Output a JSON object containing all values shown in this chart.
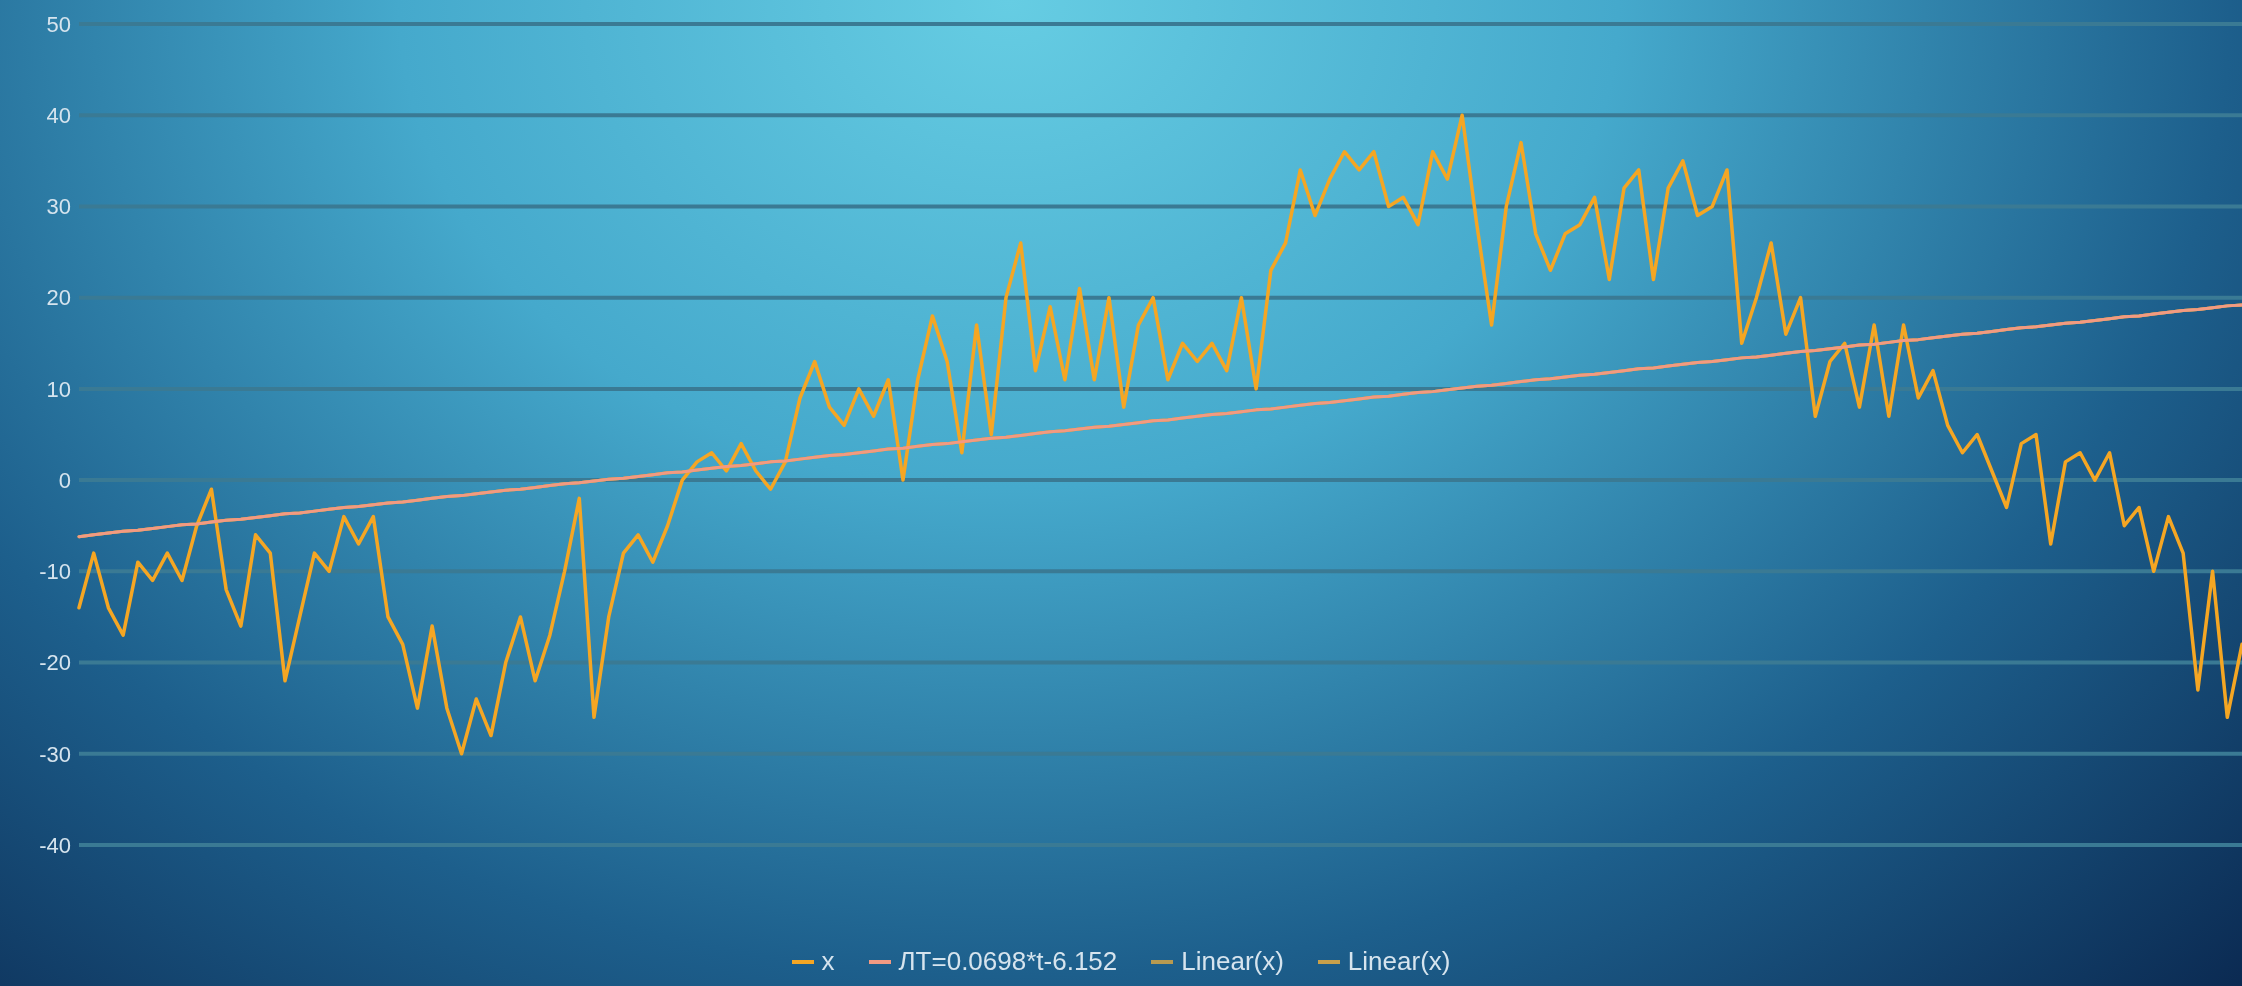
{
  "chart_data": {
    "type": "line",
    "categories": [
      null,
      null,
      null,
      null,
      null,
      null,
      null,
      null,
      null,
      null,
      null,
      null,
      null,
      null,
      null,
      null,
      null,
      null,
      null,
      null,
      null,
      null,
      null,
      null,
      null,
      null,
      null,
      null,
      null,
      null,
      null,
      null,
      null,
      null,
      null,
      null,
      null,
      null,
      null,
      null,
      null,
      null,
      null,
      null,
      null,
      null,
      null,
      null,
      null,
      null,
      null,
      null,
      null,
      null,
      null,
      null,
      null,
      null,
      null,
      null,
      null,
      null,
      null,
      null,
      null,
      null,
      null,
      null,
      null,
      null,
      null,
      null,
      null,
      null,
      null,
      null,
      null,
      null,
      null,
      null,
      null,
      null,
      null,
      null,
      null,
      null,
      null,
      null,
      null,
      null,
      null,
      null,
      null,
      null,
      null,
      null,
      null,
      null,
      null,
      null,
      null,
      null,
      null,
      null,
      null,
      null,
      null,
      null,
      null,
      null,
      null,
      null,
      null,
      null,
      null,
      null,
      null,
      null,
      null,
      null,
      null,
      null,
      null,
      null,
      null,
      null,
      null,
      null,
      null,
      null,
      null,
      null,
      null,
      null,
      null,
      null,
      null,
      null,
      null,
      null,
      null,
      null,
      null,
      null,
      null,
      null,
      null,
      null
    ],
    "series": [
      {
        "name": "x",
        "color": "#f5a623",
        "values": [
          -14,
          -8,
          -14,
          -17,
          -9,
          -11,
          -8,
          -11,
          -5,
          -1,
          -12,
          -16,
          -6,
          -8,
          -22,
          -15,
          -8,
          -10,
          -4,
          -7,
          -4,
          -15,
          -18,
          -25,
          -16,
          -25,
          -30,
          -24,
          -28,
          -20,
          -15,
          -22,
          -17,
          -10,
          -2,
          -26,
          -15,
          -8,
          -6,
          -9,
          -5,
          0,
          2,
          3,
          1,
          4,
          1,
          -1,
          2,
          9,
          13,
          8,
          6,
          10,
          7,
          11,
          0,
          11,
          18,
          13,
          3,
          17,
          5,
          20,
          26,
          12,
          19,
          11,
          21,
          11,
          20,
          8,
          17,
          20,
          11,
          15,
          13,
          15,
          12,
          20,
          10,
          23,
          26,
          34,
          29,
          33,
          36,
          34,
          36,
          30,
          31,
          28,
          36,
          33,
          40,
          28,
          17,
          30,
          37,
          27,
          23,
          27,
          28,
          31,
          22,
          32,
          34,
          22,
          32,
          35,
          29,
          30,
          34,
          15,
          20,
          26,
          16,
          20,
          7,
          13,
          15,
          8,
          17,
          7,
          17,
          9,
          12,
          6,
          3,
          5,
          1,
          -3,
          4,
          5,
          -7,
          2,
          3,
          0,
          3,
          -5,
          -3,
          -10,
          -4,
          -8,
          -23,
          -10,
          -26,
          -18
        ]
      },
      {
        "name": "ЛТ=0.0698*t-6.152",
        "color": "#f29a82",
        "values": [
          -6.2,
          -6.0,
          -5.8,
          -5.6,
          -5.5,
          -5.3,
          -5.1,
          -4.9,
          -4.8,
          -4.6,
          -4.4,
          -4.3,
          -4.1,
          -3.9,
          -3.7,
          -3.6,
          -3.4,
          -3.2,
          -3.0,
          -2.9,
          -2.7,
          -2.5,
          -2.4,
          -2.2,
          -2.0,
          -1.8,
          -1.7,
          -1.5,
          -1.3,
          -1.1,
          -1.0,
          -0.8,
          -0.6,
          -0.4,
          -0.3,
          -0.1,
          0.1,
          0.2,
          0.4,
          0.6,
          0.8,
          0.9,
          1.1,
          1.3,
          1.5,
          1.6,
          1.8,
          2.0,
          2.1,
          2.3,
          2.5,
          2.7,
          2.8,
          3.0,
          3.2,
          3.4,
          3.5,
          3.7,
          3.9,
          4.0,
          4.2,
          4.4,
          4.6,
          4.7,
          4.9,
          5.1,
          5.3,
          5.4,
          5.6,
          5.8,
          5.9,
          6.1,
          6.3,
          6.5,
          6.6,
          6.8,
          7.0,
          7.2,
          7.3,
          7.5,
          7.7,
          7.8,
          8.0,
          8.2,
          8.4,
          8.5,
          8.7,
          8.9,
          9.1,
          9.2,
          9.4,
          9.6,
          9.7,
          9.9,
          10.1,
          10.3,
          10.4,
          10.6,
          10.8,
          11.0,
          11.1,
          11.3,
          11.5,
          11.6,
          11.8,
          12.0,
          12.2,
          12.3,
          12.5,
          12.7,
          12.9,
          13.0,
          13.2,
          13.4,
          13.5,
          13.7,
          13.9,
          14.1,
          14.2,
          14.4,
          14.6,
          14.8,
          14.9,
          15.1,
          15.3,
          15.4,
          15.6,
          15.8,
          16.0,
          16.1,
          16.3,
          16.5,
          16.7,
          16.8,
          17.0,
          17.2,
          17.3,
          17.5,
          17.7,
          17.9,
          18.0,
          18.2,
          18.4,
          18.6,
          18.7,
          18.9,
          19.1,
          19.2
        ]
      },
      {
        "name": "Linear(x)",
        "color": "#b89a50",
        "values": [
          -6.2,
          -6.0,
          -5.8,
          -5.6,
          -5.5,
          -5.3,
          -5.1,
          -4.9,
          -4.8,
          -4.6,
          -4.4,
          -4.3,
          -4.1,
          -3.9,
          -3.7,
          -3.6,
          -3.4,
          -3.2,
          -3.0,
          -2.9,
          -2.7,
          -2.5,
          -2.4,
          -2.2,
          -2.0,
          -1.8,
          -1.7,
          -1.5,
          -1.3,
          -1.1,
          -1.0,
          -0.8,
          -0.6,
          -0.4,
          -0.3,
          -0.1,
          0.1,
          0.2,
          0.4,
          0.6,
          0.8,
          0.9,
          1.1,
          1.3,
          1.5,
          1.6,
          1.8,
          2.0,
          2.1,
          2.3,
          2.5,
          2.7,
          2.8,
          3.0,
          3.2,
          3.4,
          3.5,
          3.7,
          3.9,
          4.0,
          4.2,
          4.4,
          4.6,
          4.7,
          4.9,
          5.1,
          5.3,
          5.4,
          5.6,
          5.8,
          5.9,
          6.1,
          6.3,
          6.5,
          6.6,
          6.8,
          7.0,
          7.2,
          7.3,
          7.5,
          7.7,
          7.8,
          8.0,
          8.2,
          8.4,
          8.5,
          8.7,
          8.9,
          9.1,
          9.2,
          9.4,
          9.6,
          9.7,
          9.9,
          10.1,
          10.3,
          10.4,
          10.6,
          10.8,
          11.0,
          11.1,
          11.3,
          11.5,
          11.6,
          11.8,
          12.0,
          12.2,
          12.3,
          12.5,
          12.7,
          12.9,
          13.0,
          13.2,
          13.4,
          13.5,
          13.7,
          13.9,
          14.1,
          14.2,
          14.4,
          14.6,
          14.8,
          14.9,
          15.1,
          15.3,
          15.4,
          15.6,
          15.8,
          16.0,
          16.1,
          16.3,
          16.5,
          16.7,
          16.8,
          17.0,
          17.2,
          17.3,
          17.5,
          17.7,
          17.9,
          18.0,
          18.2,
          18.4,
          18.6,
          18.7,
          18.9,
          19.1,
          19.2
        ]
      },
      {
        "name": "Linear(x)",
        "color": "#c9a04a",
        "values": [
          -6.2,
          -6.0,
          -5.8,
          -5.6,
          -5.5,
          -5.3,
          -5.1,
          -4.9,
          -4.8,
          -4.6,
          -4.4,
          -4.3,
          -4.1,
          -3.9,
          -3.7,
          -3.6,
          -3.4,
          -3.2,
          -3.0,
          -2.9,
          -2.7,
          -2.5,
          -2.4,
          -2.2,
          -2.0,
          -1.8,
          -1.7,
          -1.5,
          -1.3,
          -1.1,
          -1.0,
          -0.8,
          -0.6,
          -0.4,
          -0.3,
          -0.1,
          0.1,
          0.2,
          0.4,
          0.6,
          0.8,
          0.9,
          1.1,
          1.3,
          1.5,
          1.6,
          1.8,
          2.0,
          2.1,
          2.3,
          2.5,
          2.7,
          2.8,
          3.0,
          3.2,
          3.4,
          3.5,
          3.7,
          3.9,
          4.0,
          4.2,
          4.4,
          4.6,
          4.7,
          4.9,
          5.1,
          5.3,
          5.4,
          5.6,
          5.8,
          5.9,
          6.1,
          6.3,
          6.5,
          6.6,
          6.8,
          7.0,
          7.2,
          7.3,
          7.5,
          7.7,
          7.8,
          8.0,
          8.2,
          8.4,
          8.5,
          8.7,
          8.9,
          9.1,
          9.2,
          9.4,
          9.6,
          9.7,
          9.9,
          10.1,
          10.3,
          10.4,
          10.6,
          10.8,
          11.0,
          11.1,
          11.3,
          11.5,
          11.6,
          11.8,
          12.0,
          12.2,
          12.3,
          12.5,
          12.7,
          12.9,
          13.0,
          13.2,
          13.4,
          13.5,
          13.7,
          13.9,
          14.1,
          14.2,
          14.4,
          14.6,
          14.8,
          14.9,
          15.1,
          15.3,
          15.4,
          15.6,
          15.8,
          16.0,
          16.1,
          16.3,
          16.5,
          16.7,
          16.8,
          17.0,
          17.2,
          17.3,
          17.5,
          17.7,
          17.9,
          18.0,
          18.2,
          18.4,
          18.6,
          18.7,
          18.9,
          19.1,
          19.2
        ]
      }
    ],
    "ylim": [
      -40,
      50
    ],
    "yticks": [
      -40,
      -30,
      -20,
      -10,
      0,
      10,
      20,
      30,
      40,
      50
    ],
    "grid": "y",
    "legend": "bottom",
    "marker": "none",
    "line_style": "solid"
  }
}
